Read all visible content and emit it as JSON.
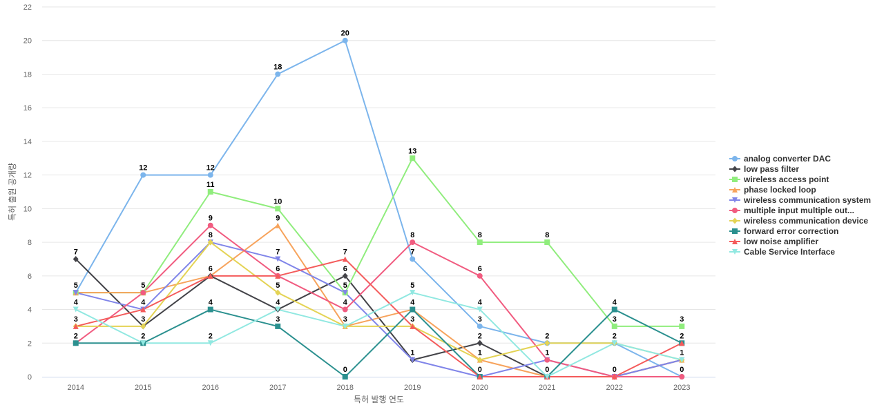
{
  "chart_data": {
    "type": "line",
    "title": "",
    "xlabel": "특허 발행 연도",
    "ylabel": "특허 출원 공개량",
    "x": [
      "2014",
      "2015",
      "2016",
      "2017",
      "2018",
      "2019",
      "2020",
      "2021",
      "2022",
      "2023"
    ],
    "y_ticks": [
      "0",
      "2",
      "4",
      "6",
      "8",
      "10",
      "12",
      "14",
      "16",
      "18",
      "20",
      "22"
    ],
    "ylim": [
      0,
      22
    ],
    "grid": "horizontal",
    "legend_position": "right",
    "series": [
      {
        "name": "analog converter DAC",
        "color": "#7cb5ec",
        "marker": "circle",
        "values": [
          5,
          12,
          12,
          18,
          20,
          7,
          3,
          2,
          2,
          0
        ]
      },
      {
        "name": "low pass filter",
        "color": "#434348",
        "marker": "diamond",
        "values": [
          7,
          3,
          6,
          4,
          6,
          1,
          2,
          0,
          0,
          1
        ]
      },
      {
        "name": "wireless access point",
        "color": "#90ed7d",
        "marker": "square",
        "values": [
          5,
          5,
          11,
          10,
          5,
          13,
          8,
          8,
          3,
          3
        ]
      },
      {
        "name": "phase locked loop",
        "color": "#f7a35c",
        "marker": "triangle",
        "values": [
          5,
          5,
          6,
          9,
          3,
          4,
          1,
          0,
          0,
          1
        ]
      },
      {
        "name": "wireless communication system",
        "color": "#8085e9",
        "marker": "triangle-down",
        "values": [
          5,
          4,
          8,
          7,
          5,
          1,
          0,
          1,
          0,
          1
        ]
      },
      {
        "name": "multiple input multiple out...",
        "color": "#f15c80",
        "marker": "circle",
        "values": [
          2,
          5,
          9,
          6,
          4,
          8,
          6,
          1,
          0,
          0
        ]
      },
      {
        "name": "wireless communication device",
        "color": "#e4d354",
        "marker": "diamond",
        "values": [
          3,
          3,
          8,
          5,
          3,
          3,
          1,
          2,
          2,
          1
        ]
      },
      {
        "name": "forward error correction",
        "color": "#2b908f",
        "marker": "square",
        "values": [
          2,
          2,
          4,
          3,
          0,
          4,
          0,
          0,
          4,
          2
        ]
      },
      {
        "name": "low noise amplifier",
        "color": "#f45b5b",
        "marker": "triangle",
        "values": [
          3,
          4,
          6,
          6,
          7,
          3,
          0,
          0,
          0,
          2
        ]
      },
      {
        "name": "Cable Service Interface",
        "color": "#91e8e1",
        "marker": "triangle-down",
        "values": [
          4,
          2,
          2,
          4,
          3,
          5,
          4,
          0,
          2,
          1
        ]
      }
    ],
    "data_labels": [
      {
        "x": "2014",
        "value": "7",
        "series": 1
      },
      {
        "x": "2014",
        "value": "5",
        "series": 0
      },
      {
        "x": "2014",
        "value": "4",
        "series": 9
      },
      {
        "x": "2014",
        "value": "3",
        "series": 8
      },
      {
        "x": "2014",
        "value": "2",
        "series": 7
      },
      {
        "x": "2015",
        "value": "12",
        "series": 0
      },
      {
        "x": "2015",
        "value": "5",
        "series": 2
      },
      {
        "x": "2015",
        "value": "4",
        "series": 4
      },
      {
        "x": "2015",
        "value": "3",
        "series": 1
      },
      {
        "x": "2015",
        "value": "2",
        "series": 9
      },
      {
        "x": "2016",
        "value": "12",
        "series": 0
      },
      {
        "x": "2016",
        "value": "11",
        "series": 2
      },
      {
        "x": "2016",
        "value": "9",
        "series": 5
      },
      {
        "x": "2016",
        "value": "8",
        "series": 4
      },
      {
        "x": "2016",
        "value": "6",
        "series": 1
      },
      {
        "x": "2016",
        "value": "4",
        "series": 7
      },
      {
        "x": "2016",
        "value": "2",
        "series": 9
      },
      {
        "x": "2017",
        "value": "18",
        "series": 0
      },
      {
        "x": "2017",
        "value": "10",
        "series": 2
      },
      {
        "x": "2017",
        "value": "9",
        "series": 3
      },
      {
        "x": "2017",
        "value": "7",
        "series": 4
      },
      {
        "x": "2017",
        "value": "6",
        "series": 5
      },
      {
        "x": "2017",
        "value": "5",
        "series": 6
      },
      {
        "x": "2017",
        "value": "4",
        "series": 1
      },
      {
        "x": "2017",
        "value": "3",
        "series": 7
      },
      {
        "x": "2018",
        "value": "20",
        "series": 0
      },
      {
        "x": "2018",
        "value": "7",
        "series": 8
      },
      {
        "x": "2018",
        "value": "6",
        "series": 1
      },
      {
        "x": "2018",
        "value": "5",
        "series": 2
      },
      {
        "x": "2018",
        "value": "4",
        "series": 5
      },
      {
        "x": "2018",
        "value": "3",
        "series": 3
      },
      {
        "x": "2018",
        "value": "0",
        "series": 7
      },
      {
        "x": "2019",
        "value": "13",
        "series": 2
      },
      {
        "x": "2019",
        "value": "8",
        "series": 5
      },
      {
        "x": "2019",
        "value": "7",
        "series": 0
      },
      {
        "x": "2019",
        "value": "5",
        "series": 9
      },
      {
        "x": "2019",
        "value": "4",
        "series": 7
      },
      {
        "x": "2019",
        "value": "3",
        "series": 8
      },
      {
        "x": "2019",
        "value": "1",
        "series": 1
      },
      {
        "x": "2020",
        "value": "8",
        "series": 2
      },
      {
        "x": "2020",
        "value": "6",
        "series": 5
      },
      {
        "x": "2020",
        "value": "4",
        "series": 9
      },
      {
        "x": "2020",
        "value": "3",
        "series": 0
      },
      {
        "x": "2020",
        "value": "2",
        "series": 1
      },
      {
        "x": "2020",
        "value": "1",
        "series": 3
      },
      {
        "x": "2020",
        "value": "0",
        "series": 4
      },
      {
        "x": "2021",
        "value": "8",
        "series": 2
      },
      {
        "x": "2021",
        "value": "2",
        "series": 0
      },
      {
        "x": "2021",
        "value": "1",
        "series": 4
      },
      {
        "x": "2021",
        "value": "0",
        "series": 7
      },
      {
        "x": "2022",
        "value": "4",
        "series": 7
      },
      {
        "x": "2022",
        "value": "3",
        "series": 2
      },
      {
        "x": "2022",
        "value": "2",
        "series": 0
      },
      {
        "x": "2022",
        "value": "0",
        "series": 4
      },
      {
        "x": "2023",
        "value": "3",
        "series": 2
      },
      {
        "x": "2023",
        "value": "2",
        "series": 7
      },
      {
        "x": "2023",
        "value": "1",
        "series": 9
      },
      {
        "x": "2023",
        "value": "0",
        "series": 5
      }
    ]
  }
}
